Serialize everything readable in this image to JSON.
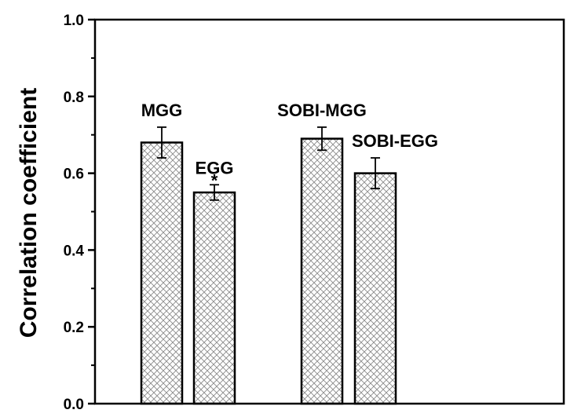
{
  "chart_data": {
    "type": "bar",
    "title": "",
    "xlabel": "",
    "ylabel": "Correlation coefficient",
    "ylim": [
      0.0,
      1.0
    ],
    "yticks": [
      "0.0",
      "0.2",
      "0.4",
      "0.6",
      "0.8",
      "1.0"
    ],
    "categories": [
      "MGG",
      "EGG",
      "SOBI-MGG",
      "SOBI-EGG"
    ],
    "values": [
      0.68,
      0.55,
      0.69,
      0.6
    ],
    "errors": [
      0.04,
      0.02,
      0.03,
      0.04
    ],
    "annotations": [
      {
        "category": "EGG",
        "text": "*"
      }
    ],
    "bar_fill": "crosshatch",
    "bar_color": "#ffffff",
    "hatch_color": "#7a7a7a",
    "edge_color": "#000000",
    "grid": false,
    "legend": "none"
  }
}
